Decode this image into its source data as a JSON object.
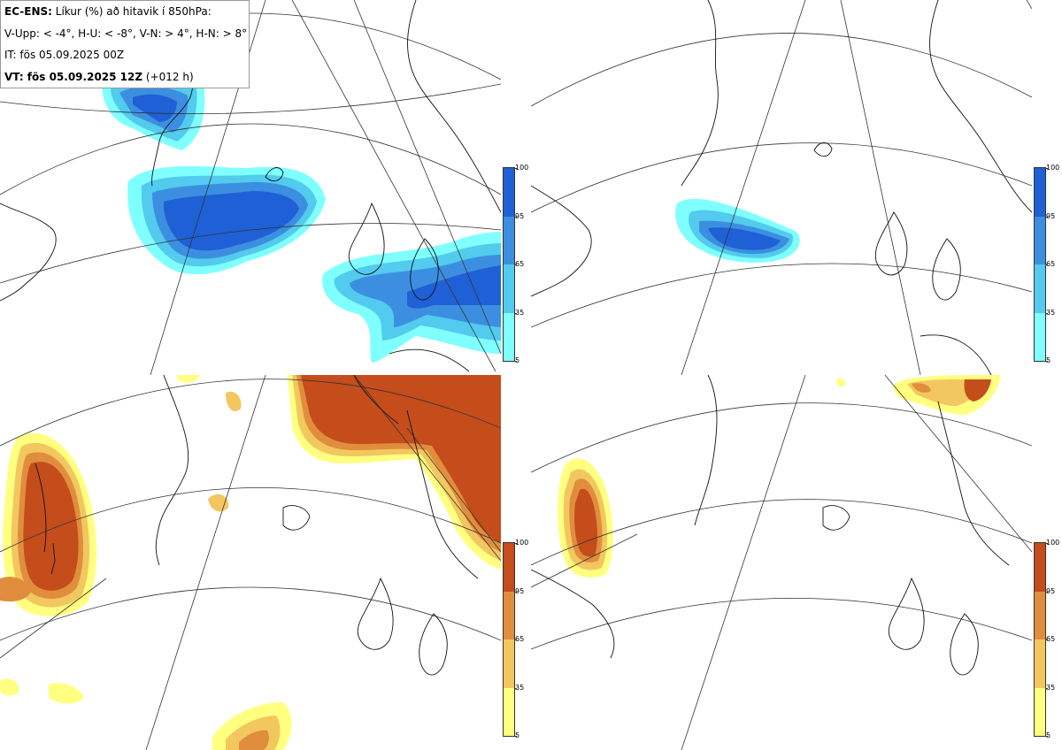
{
  "legend": {
    "model": "EC-ENS:",
    "title": " Líkur (%) að hitavik í 850hPa:",
    "criteria": "V-Upp: < -4°, H-U: < -8°, V-N: > 4°, H-N: > 8°",
    "init_time": "IT: fös 05.09.2025 00Z",
    "valid_label": "VT: fös 05.09.2025 12Z",
    "lead": " (+012 h)"
  },
  "colorbar_ticks": [
    "100",
    "95",
    "65",
    "35",
    "5"
  ],
  "colors": {
    "cold": [
      "#80ffff",
      "#52cbee",
      "#3c8fe0",
      "#1f60d6"
    ],
    "warm": [
      "#ffff80",
      "#f3c75f",
      "#e08e3d",
      "#c44d1b"
    ]
  },
  "panels": [
    {
      "id": "top-left",
      "scheme": "cold"
    },
    {
      "id": "top-right",
      "scheme": "cold"
    },
    {
      "id": "bottom-left",
      "scheme": "warm"
    },
    {
      "id": "bottom-right",
      "scheme": "warm"
    }
  ]
}
